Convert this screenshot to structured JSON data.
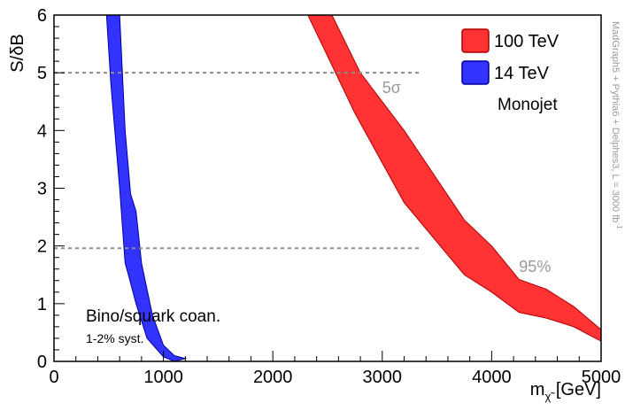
{
  "chart_data": {
    "type": "area",
    "xlabel_main": "m",
    "xlabel_sub": "χ̃",
    "xlabel_unit": " [GeV]",
    "ylabel": "S/δB",
    "xlim": [
      0,
      5000
    ],
    "ylim": [
      0,
      6
    ],
    "x_ticks": [
      0,
      1000,
      2000,
      3000,
      4000,
      5000
    ],
    "y_ticks": [
      0,
      1,
      2,
      3,
      4,
      5,
      6
    ],
    "grid": false,
    "legend_position": "top-right",
    "series": [
      {
        "name": "100 TeV",
        "color": "#ff3333",
        "edge_color": "#b20000",
        "upper": [
          [
            2540,
            6.0
          ],
          [
            2800,
            5.0
          ],
          [
            3200,
            4.0
          ],
          [
            3750,
            2.45
          ],
          [
            4000,
            2.0
          ],
          [
            4250,
            1.42
          ],
          [
            4500,
            1.25
          ],
          [
            4750,
            0.95
          ],
          [
            5000,
            0.55
          ]
        ],
        "lower": [
          [
            2320,
            6.0
          ],
          [
            2750,
            4.3
          ],
          [
            3200,
            2.75
          ],
          [
            3750,
            1.5
          ],
          [
            4000,
            1.2
          ],
          [
            4250,
            0.85
          ],
          [
            4500,
            0.75
          ],
          [
            4750,
            0.6
          ],
          [
            5000,
            0.35
          ]
        ]
      },
      {
        "name": "14 TeV",
        "color": "#3333ff",
        "edge_color": "#0000a0",
        "upper": [
          [
            600,
            6.0
          ],
          [
            650,
            4.0
          ],
          [
            700,
            2.9
          ],
          [
            750,
            2.6
          ],
          [
            800,
            1.7
          ],
          [
            900,
            0.8
          ],
          [
            1000,
            0.28
          ],
          [
            1100,
            0.1
          ],
          [
            1200,
            0.05
          ]
        ],
        "lower": [
          [
            480,
            6.0
          ],
          [
            520,
            4.8
          ],
          [
            600,
            3.0
          ],
          [
            650,
            1.7
          ],
          [
            680,
            1.5
          ],
          [
            750,
            1.0
          ],
          [
            850,
            0.4
          ],
          [
            1000,
            0.08
          ],
          [
            1100,
            0.0
          ]
        ]
      }
    ],
    "reference_lines": [
      {
        "y": 5,
        "label": "5σ"
      },
      {
        "y": 1.96,
        "label": "95%"
      }
    ],
    "annotations": {
      "process": "Monojet",
      "model": "Bino/squark coan.",
      "syst": "1-2% syst.",
      "side_note": "MadGraph5 + Pythia6 + Delphes3, L = 3000 fb",
      "side_note_sup": "-1"
    }
  }
}
